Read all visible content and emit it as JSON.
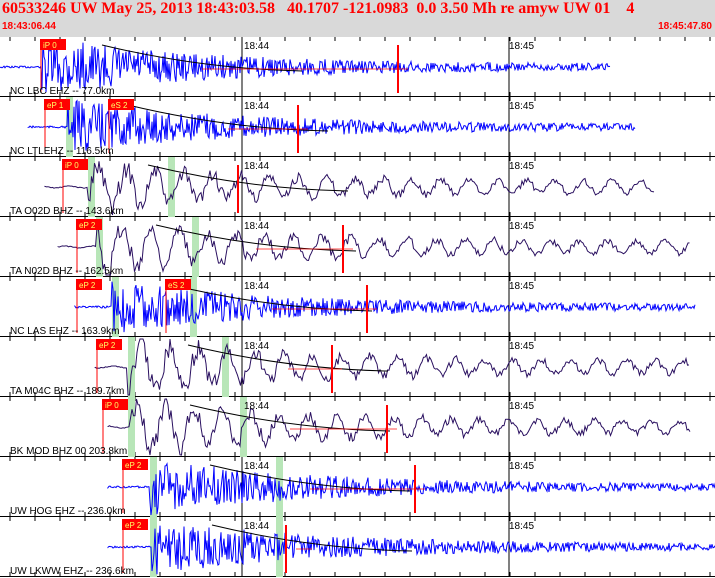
{
  "header": {
    "title": "60533246 UW May 25, 2013 18:43:03.58   40.1707 -121.0983  0.0 3.50 Mh re amyw UW 01    4",
    "start_time": "18:43:06.44",
    "end_time": "18:45:47.80"
  },
  "time_labels": [
    "18:44",
    "18:45"
  ],
  "colors": {
    "background": "#ffffff",
    "header_bg": "#d9d9d9",
    "title": "#ff0000",
    "trace_blue": "#0000ff",
    "trace_purple": "#2a1060",
    "pick": "#ff0000",
    "pick_tag_bg": "#ff0000",
    "pick_tag_text": "#ffff66",
    "window_band": "#b8e6b8",
    "curve": "#000000"
  },
  "channels": [
    {
      "label": "NC LBC EHZ -- 77.0km",
      "trace_color": "blue",
      "picks": [
        {
          "phase": "iP 0"
        }
      ]
    },
    {
      "label": "NC LTLEHZ -- 116.5km",
      "trace_color": "blue",
      "picks": [
        {
          "phase": "eP 1"
        },
        {
          "phase": "eS 2"
        }
      ]
    },
    {
      "label": "TA O02D BHZ -- 143.6km",
      "trace_color": "purple",
      "picks": [
        {
          "phase": "iP 0"
        }
      ]
    },
    {
      "label": "TA N02D BHZ -- 162.5km",
      "trace_color": "purple",
      "picks": [
        {
          "phase": "eP 2"
        }
      ]
    },
    {
      "label": "NC LAS EHZ -- 163.9km",
      "trace_color": "blue",
      "picks": [
        {
          "phase": "eP 2"
        },
        {
          "phase": "eS 2"
        }
      ]
    },
    {
      "label": "TA M04C BHZ -- 189.7km",
      "trace_color": "purple",
      "picks": [
        {
          "phase": "eP 2"
        }
      ]
    },
    {
      "label": "BK MOD BHZ 00 203.8km",
      "trace_color": "purple",
      "picks": [
        {
          "phase": "iP 0"
        }
      ]
    },
    {
      "label": "UW HOG EHZ -- 236.0km",
      "trace_color": "blue",
      "picks": [
        {
          "phase": "eP 2"
        }
      ]
    },
    {
      "label": "UW LKWW EHZ -- 236.6km",
      "trace_color": "blue",
      "picks": [
        {
          "phase": "eP 2"
        }
      ]
    }
  ]
}
